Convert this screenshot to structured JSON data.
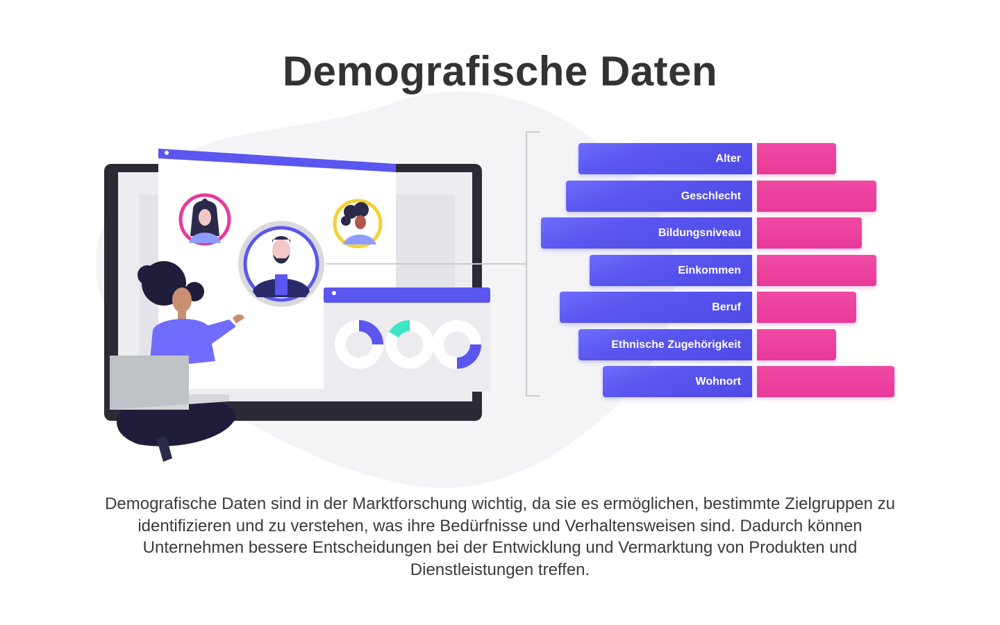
{
  "title": "Demografische Daten",
  "colors": {
    "label_bar": "#5a56ef",
    "value_bar": "#e8399a",
    "accent_yellow": "#f2d233",
    "accent_teal": "#3ce6c4",
    "background_blob": "#f4f4f7"
  },
  "categories": [
    {
      "label": "Alter",
      "value": 44
    },
    {
      "label": "Geschlecht",
      "value": 66
    },
    {
      "label": "Bildungsniveau",
      "value": 58
    },
    {
      "label": "Einkommen",
      "value": 66
    },
    {
      "label": "Beruf",
      "value": 55
    },
    {
      "label": "Ethnische Zugehörigkeit",
      "value": 44
    },
    {
      "label": "Wohnort",
      "value": 76
    }
  ],
  "description": "Demografische Daten sind in der Marktforschung wichtig, da sie es ermöglichen, bestimmte Zielgruppen zu identifizieren und zu verstehen, was ihre Bedürfnisse und Verhaltensweisen sind. Dadurch können Unternehmen bessere Entscheidungen bei der Entwicklung und Vermarktung von Produkten und Dienstleistungen treffen.",
  "illustration": {
    "icons": [
      "monitor-icon",
      "browser-window-icon",
      "avatar-woman-icon",
      "avatar-man-icon",
      "avatar-woman-curly-icon",
      "donut-chart-icon",
      "laptop-icon",
      "person-icon"
    ]
  }
}
